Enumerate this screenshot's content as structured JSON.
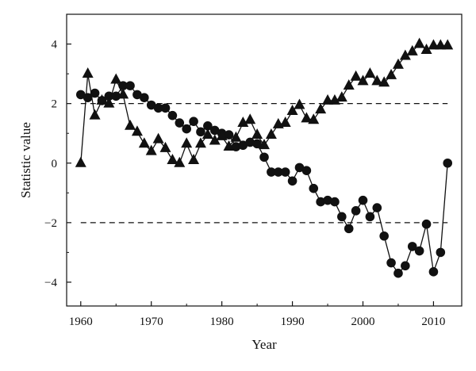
{
  "chart_data": {
    "type": "line",
    "title": "",
    "xlabel": "Year",
    "ylabel": "Statistic value",
    "xlim": [
      1958,
      2014
    ],
    "ylim": [
      -4.8,
      5
    ],
    "xticks": [
      1960,
      1970,
      1980,
      1990,
      2000,
      2010
    ],
    "yticks": [
      -4,
      -2,
      0,
      2,
      4
    ],
    "grid": false,
    "legend": "none",
    "reference_lines": [
      2,
      -2
    ],
    "x": [
      1960,
      1961,
      1962,
      1963,
      1964,
      1965,
      1966,
      1967,
      1968,
      1969,
      1970,
      1971,
      1972,
      1973,
      1974,
      1975,
      1976,
      1977,
      1978,
      1979,
      1980,
      1981,
      1982,
      1983,
      1984,
      1985,
      1986,
      1987,
      1988,
      1989,
      1990,
      1991,
      1992,
      1993,
      1994,
      1995,
      1996,
      1997,
      1998,
      1999,
      2000,
      2001,
      2002,
      2003,
      2004,
      2005,
      2006,
      2007,
      2008,
      2009,
      2010,
      2011,
      2012
    ],
    "series": [
      {
        "marker": "circle",
        "values": [
          2.3,
          2.2,
          2.35,
          2.1,
          2.25,
          2.25,
          2.6,
          2.6,
          2.3,
          2.2,
          1.95,
          1.85,
          1.85,
          1.6,
          1.35,
          1.15,
          1.4,
          1.05,
          1.25,
          1.1,
          1.0,
          0.95,
          0.55,
          0.6,
          0.7,
          0.65,
          0.2,
          -0.3,
          -0.3,
          -0.3,
          -0.6,
          -0.15,
          -0.25,
          -0.85,
          -1.3,
          -1.25,
          -1.3,
          -1.8,
          -2.2,
          -1.6,
          -1.25,
          -1.8,
          -1.5,
          -2.45,
          -3.35,
          -3.7,
          -3.45,
          -2.8,
          -2.95,
          -2.05,
          -3.65,
          -3.0,
          0.0
        ]
      },
      {
        "marker": "triangle",
        "values": [
          0.0,
          3.0,
          1.6,
          2.1,
          2.0,
          2.8,
          2.3,
          1.25,
          1.05,
          0.65,
          0.4,
          0.8,
          0.5,
          0.1,
          0.0,
          0.65,
          0.1,
          0.65,
          0.95,
          0.75,
          0.9,
          0.55,
          0.85,
          1.35,
          1.45,
          0.95,
          0.6,
          0.95,
          1.3,
          1.35,
          1.75,
          1.95,
          1.5,
          1.45,
          1.8,
          2.1,
          2.1,
          2.2,
          2.6,
          2.9,
          2.75,
          3.0,
          2.75,
          2.7,
          2.95,
          3.3,
          3.6,
          3.75,
          4.0,
          3.8,
          3.95,
          3.95,
          3.95
        ]
      }
    ]
  }
}
